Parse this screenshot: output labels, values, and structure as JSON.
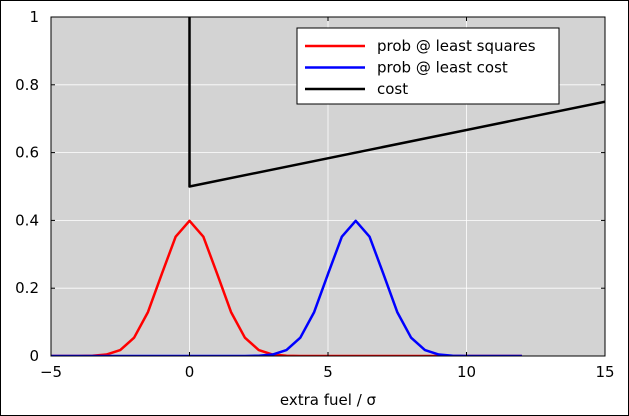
{
  "chart_data": {
    "type": "line",
    "title": "",
    "xlabel": "extra fuel / σ",
    "ylabel": "",
    "xlim": [
      -5,
      15
    ],
    "ylim": [
      0,
      1
    ],
    "x_ticks": [
      -5,
      0,
      5,
      10,
      15
    ],
    "x_tick_labels": [
      "−5",
      "0",
      "5",
      "10",
      "15"
    ],
    "y_ticks": [
      0,
      0.2,
      0.4,
      0.6,
      0.8,
      1
    ],
    "y_tick_labels": [
      "0",
      "0.2",
      "0.4",
      "0.6",
      "0.8",
      "1"
    ],
    "grid": true,
    "background_color": "#d3d3d3",
    "legend_position": "top-right",
    "series": [
      {
        "name": "prob @ least squares",
        "color": "#ff0000",
        "x": [
          -5,
          -4.5,
          -4,
          -3.5,
          -3,
          -2.5,
          -2,
          -1.5,
          -1,
          -0.5,
          0,
          0.5,
          1,
          1.5,
          2,
          2.5,
          3,
          3.5,
          4,
          4.5,
          5,
          5.5,
          6,
          6.5,
          7,
          7.5,
          8,
          8.5,
          9,
          9.5,
          10,
          10.5,
          11,
          11.5,
          12
        ],
        "y": [
          0.0,
          0.0,
          0.0001,
          0.0009,
          0.0044,
          0.0175,
          0.054,
          0.1295,
          0.242,
          0.3521,
          0.3989,
          0.3521,
          0.242,
          0.1295,
          0.054,
          0.0175,
          0.0044,
          0.0009,
          0.0001,
          0.0,
          0.0,
          0.0,
          0.0,
          0.0,
          0.0,
          0.0,
          0.0,
          0.0,
          0.0,
          0.0,
          0.0,
          0.0,
          0.0,
          0.0,
          0.0
        ]
      },
      {
        "name": "prob @ least cost",
        "color": "#0000ff",
        "x": [
          -5,
          -4.5,
          -4,
          -3.5,
          -3,
          -2.5,
          -2,
          -1.5,
          -1,
          -0.5,
          0,
          0.5,
          1,
          1.5,
          2,
          2.5,
          3,
          3.5,
          4,
          4.5,
          5,
          5.5,
          6,
          6.5,
          7,
          7.5,
          8,
          8.5,
          9,
          9.5,
          10,
          10.5,
          11,
          11.5,
          12
        ],
        "y": [
          0.0,
          0.0,
          0.0,
          0.0,
          0.0,
          0.0,
          0.0,
          0.0,
          0.0,
          0.0,
          0.0,
          0.0,
          0.0,
          0.0,
          0.0001,
          0.0009,
          0.0044,
          0.0175,
          0.054,
          0.1295,
          0.242,
          0.3521,
          0.3989,
          0.3521,
          0.242,
          0.1295,
          0.054,
          0.0175,
          0.0044,
          0.0009,
          0.0001,
          0.0,
          0.0,
          0.0,
          0.0
        ]
      },
      {
        "name": "cost",
        "color": "#000000",
        "x": [
          0,
          0,
          15
        ],
        "y": [
          1.05,
          0.5,
          0.75
        ]
      }
    ]
  }
}
